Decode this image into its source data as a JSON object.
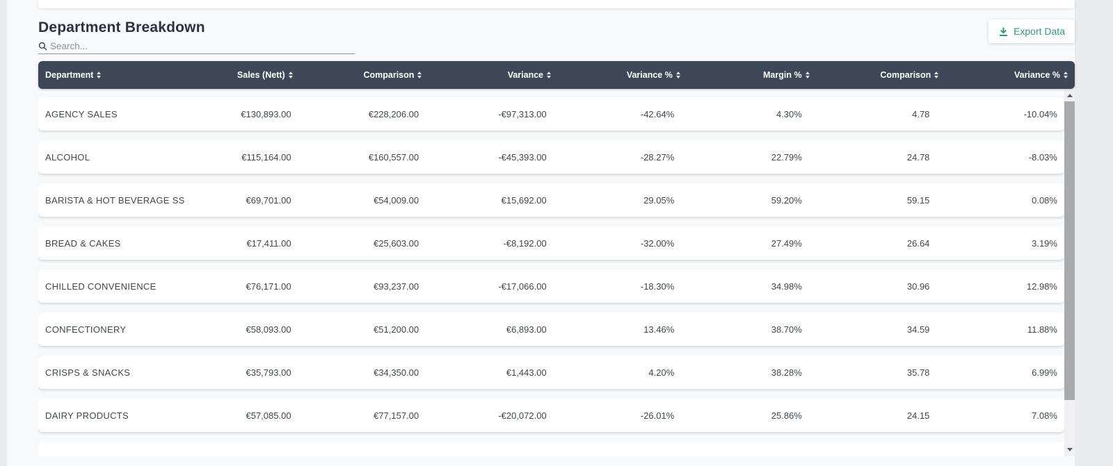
{
  "page": {
    "title": "Department Breakdown",
    "search": {
      "placeholder": "Search..."
    },
    "export_button": {
      "label": "Export Data",
      "icon": "download-icon",
      "accent_color": "#2a9d7c"
    }
  },
  "icons": {
    "search": "magnifier",
    "export": "download-arrow-with-tray",
    "sort": "up-down-triangles",
    "scrollbar_up": "triangle-up",
    "scrollbar_down": "triangle-down"
  },
  "table": {
    "header_bg": "#3e4755",
    "columns": [
      {
        "label": "Department",
        "align": "left",
        "sortable": true
      },
      {
        "label": "Sales (Nett)",
        "align": "right",
        "sortable": true
      },
      {
        "label": "Comparison",
        "align": "right",
        "sortable": true
      },
      {
        "label": "Variance",
        "align": "right",
        "sortable": true
      },
      {
        "label": "Variance %",
        "align": "right",
        "sortable": true
      },
      {
        "label": "Margin %",
        "align": "right",
        "sortable": true
      },
      {
        "label": "Comparison",
        "align": "right",
        "sortable": true
      },
      {
        "label": "Variance %",
        "align": "right",
        "sortable": true
      }
    ],
    "rows": [
      [
        "AGENCY SALES",
        "€130,893.00",
        "€228,206.00",
        "-€97,313.00",
        "-42.64%",
        "4.30%",
        "4.78",
        "-10.04%"
      ],
      [
        "ALCOHOL",
        "€115,164.00",
        "€160,557.00",
        "-€45,393.00",
        "-28.27%",
        "22.79%",
        "24.78",
        "-8.03%"
      ],
      [
        "BARISTA & HOT BEVERAGE SS",
        "€69,701.00",
        "€54,009.00",
        "€15,692.00",
        "29.05%",
        "59.20%",
        "59.15",
        "0.08%"
      ],
      [
        "BREAD & CAKES",
        "€17,411.00",
        "€25,603.00",
        "-€8,192.00",
        "-32.00%",
        "27.49%",
        "26.64",
        "3.19%"
      ],
      [
        "CHILLED CONVENIENCE",
        "€76,171.00",
        "€93,237.00",
        "-€17,066.00",
        "-18.30%",
        "34.98%",
        "30.96",
        "12.98%"
      ],
      [
        "CONFECTIONERY",
        "€58,093.00",
        "€51,200.00",
        "€6,893.00",
        "13.46%",
        "38.70%",
        "34.59",
        "11.88%"
      ],
      [
        "CRISPS & SNACKS",
        "€35,793.00",
        "€34,350.00",
        "€1,443.00",
        "4.20%",
        "38.28%",
        "35.78",
        "6.99%"
      ],
      [
        "DAIRY PRODUCTS",
        "€57,085.00",
        "€77,157.00",
        "-€20,072.00",
        "-26.01%",
        "25.86%",
        "24.15",
        "7.08%"
      ]
    ]
  }
}
